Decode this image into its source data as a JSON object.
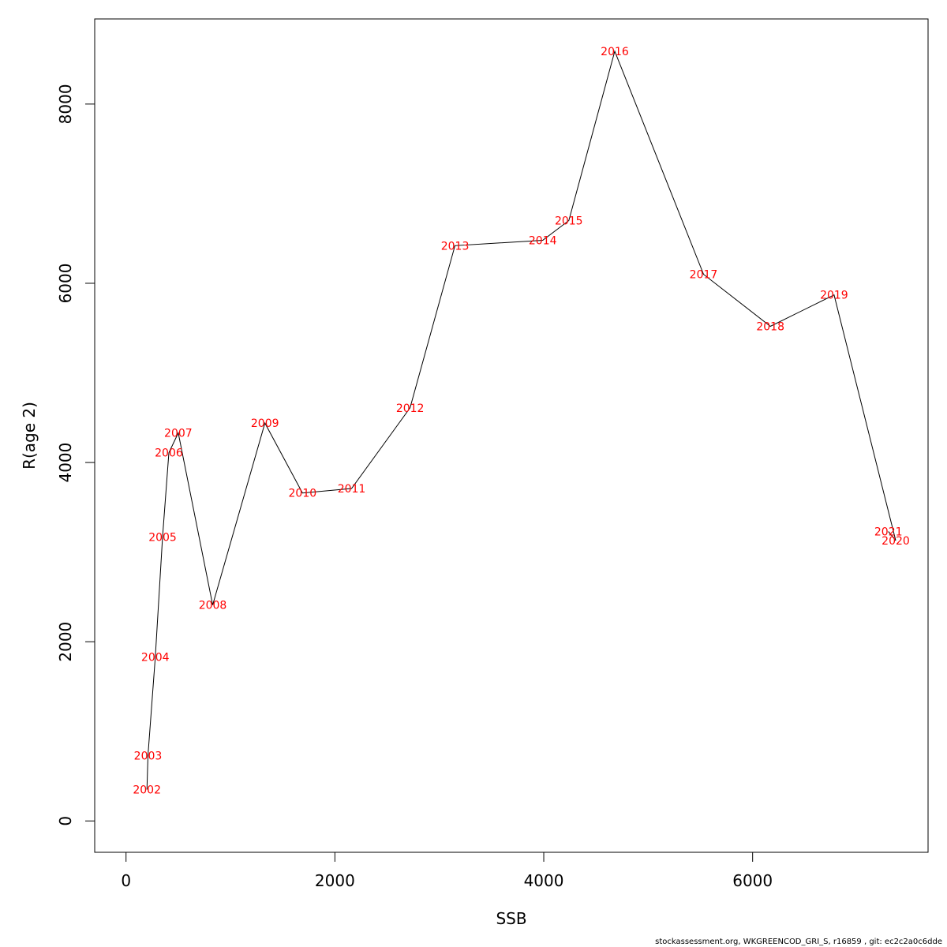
{
  "chart_data": {
    "type": "line",
    "xlabel": "SSB",
    "ylabel": "R(age 2)",
    "xlim": [
      -300,
      7680
    ],
    "ylim": [
      -350,
      8950
    ],
    "x_ticks": [
      0,
      2000,
      4000,
      6000
    ],
    "y_ticks": [
      0,
      2000,
      4000,
      6000,
      8000
    ],
    "line_color": "#000000",
    "label_color": "#ff0000",
    "points": [
      {
        "year": "2002",
        "x": 200,
        "y": 350
      },
      {
        "year": "2003",
        "x": 210,
        "y": 730
      },
      {
        "year": "2004",
        "x": 280,
        "y": 1830
      },
      {
        "year": "2005",
        "x": 350,
        "y": 3170
      },
      {
        "year": "2006",
        "x": 410,
        "y": 4110
      },
      {
        "year": "2007",
        "x": 500,
        "y": 4330
      },
      {
        "year": "2008",
        "x": 830,
        "y": 2410
      },
      {
        "year": "2009",
        "x": 1330,
        "y": 4440
      },
      {
        "year": "2010",
        "x": 1690,
        "y": 3660
      },
      {
        "year": "2011",
        "x": 2160,
        "y": 3710
      },
      {
        "year": "2012",
        "x": 2720,
        "y": 4610
      },
      {
        "year": "2013",
        "x": 3150,
        "y": 6420
      },
      {
        "year": "2014",
        "x": 3990,
        "y": 6480
      },
      {
        "year": "2015",
        "x": 4240,
        "y": 6700
      },
      {
        "year": "2016",
        "x": 4680,
        "y": 8590
      },
      {
        "year": "2017",
        "x": 5530,
        "y": 6100
      },
      {
        "year": "2018",
        "x": 6170,
        "y": 5520
      },
      {
        "year": "2019",
        "x": 6780,
        "y": 5870
      },
      {
        "year": "2020",
        "x": 7370,
        "y": 3130
      },
      {
        "year": "2021",
        "x": 7300,
        "y": 3230
      }
    ]
  },
  "footer": "stockassessment.org, WKGREENCOD_GRI_S, r16859 , git: ec2c2a0c6dde"
}
